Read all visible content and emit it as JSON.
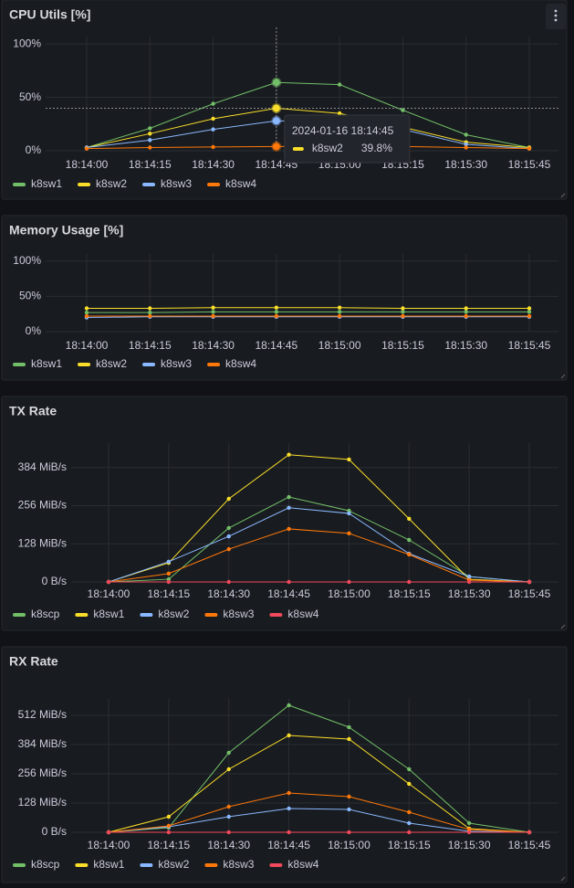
{
  "chart_data": [
    {
      "type": "line",
      "title": "CPU Utils [%]",
      "x": [
        "18:14:00",
        "18:14:15",
        "18:14:30",
        "18:14:45",
        "18:15:00",
        "18:15:15",
        "18:15:30",
        "18:15:45"
      ],
      "ylim": [
        0,
        107
      ],
      "yticks": [
        {
          "value": 0,
          "label": "0%"
        },
        {
          "value": 50,
          "label": "50%"
        },
        {
          "value": 100,
          "label": "100%"
        }
      ],
      "grid": true,
      "series": [
        {
          "name": "k8sw1",
          "color": "#73bf69",
          "values": [
            3,
            21,
            44,
            64,
            62,
            38,
            15,
            3
          ]
        },
        {
          "name": "k8sw2",
          "color": "#fade2a",
          "values": [
            3,
            16,
            30,
            39.8,
            35,
            22,
            8,
            3
          ]
        },
        {
          "name": "k8sw3",
          "color": "#8ab8ff",
          "values": [
            3,
            10,
            20,
            28,
            27,
            20,
            6,
            2
          ]
        },
        {
          "name": "k8sw4",
          "color": "#ff780a",
          "values": [
            2,
            3,
            3.5,
            4,
            4,
            4,
            3,
            2
          ]
        }
      ],
      "tooltip": {
        "time": "2024-01-16 18:14:45",
        "series_name": "k8sw2",
        "value": 39.8,
        "value_label": "39.8%"
      }
    },
    {
      "type": "line",
      "title": "Memory Usage [%]",
      "x": [
        "18:14:00",
        "18:14:15",
        "18:14:30",
        "18:14:45",
        "18:15:00",
        "18:15:15",
        "18:15:30",
        "18:15:45"
      ],
      "ylim": [
        0,
        110
      ],
      "yticks": [
        {
          "value": 0,
          "label": "0%"
        },
        {
          "value": 50,
          "label": "50%"
        },
        {
          "value": 100,
          "label": "100%"
        }
      ],
      "grid": true,
      "series": [
        {
          "name": "k8sw1",
          "color": "#73bf69",
          "values": [
            27,
            27,
            28,
            28,
            28,
            28,
            28,
            28
          ]
        },
        {
          "name": "k8sw2",
          "color": "#fade2a",
          "values": [
            33,
            33,
            34,
            34,
            34,
            33,
            33,
            33
          ]
        },
        {
          "name": "k8sw3",
          "color": "#8ab8ff",
          "values": [
            20,
            21,
            21,
            21,
            21,
            21,
            21,
            21
          ]
        },
        {
          "name": "k8sw4",
          "color": "#ff780a",
          "values": [
            22,
            22,
            22,
            22,
            22,
            22,
            22,
            22
          ]
        }
      ]
    },
    {
      "type": "line",
      "title": "TX Rate",
      "x": [
        "18:14:00",
        "18:14:15",
        "18:14:30",
        "18:14:45",
        "18:15:00",
        "18:15:15",
        "18:15:30",
        "18:15:45"
      ],
      "ylim": [
        0,
        466
      ],
      "yticks": [
        {
          "value": 0,
          "label": "0 B/s"
        },
        {
          "value": 128,
          "label": "128 MiB/s"
        },
        {
          "value": 256,
          "label": "256 MiB/s"
        },
        {
          "value": 384,
          "label": "384 MiB/s"
        }
      ],
      "grid": true,
      "series": [
        {
          "name": "k8scp",
          "color": "#73bf69",
          "values": [
            0,
            9,
            181,
            285,
            239,
            141,
            18,
            0
          ]
        },
        {
          "name": "k8sw1",
          "color": "#fade2a",
          "values": [
            0,
            64,
            279,
            427,
            411,
            212,
            9,
            0
          ]
        },
        {
          "name": "k8sw2",
          "color": "#8ab8ff",
          "values": [
            0,
            68,
            153,
            249,
            230,
            95,
            18,
            0
          ]
        },
        {
          "name": "k8sw3",
          "color": "#ff780a",
          "values": [
            0,
            28,
            110,
            178,
            163,
            92,
            6,
            0
          ]
        },
        {
          "name": "k8sw4",
          "color": "#f2495c",
          "values": [
            0,
            0,
            0,
            0,
            0,
            0,
            0,
            0
          ]
        }
      ]
    },
    {
      "type": "line",
      "title": "RX Rate",
      "x": [
        "18:14:00",
        "18:14:15",
        "18:14:30",
        "18:14:45",
        "18:15:00",
        "18:15:15",
        "18:15:30",
        "18:15:45"
      ],
      "ylim": [
        0,
        584
      ],
      "yticks": [
        {
          "value": 0,
          "label": "0 B/s"
        },
        {
          "value": 128,
          "label": "128 MiB/s"
        },
        {
          "value": 256,
          "label": "256 MiB/s"
        },
        {
          "value": 384,
          "label": "384 MiB/s"
        },
        {
          "value": 512,
          "label": "512 MiB/s"
        }
      ],
      "grid": true,
      "series": [
        {
          "name": "k8scp",
          "color": "#73bf69",
          "values": [
            0,
            20,
            348,
            556,
            460,
            276,
            40,
            0
          ]
        },
        {
          "name": "k8sw1",
          "color": "#fade2a",
          "values": [
            0,
            68,
            276,
            424,
            408,
            212,
            16,
            0
          ]
        },
        {
          "name": "k8sw2",
          "color": "#8ab8ff",
          "values": [
            0,
            24,
            68,
            104,
            100,
            40,
            4,
            0
          ]
        },
        {
          "name": "k8sw3",
          "color": "#ff780a",
          "values": [
            0,
            28,
            112,
            172,
            156,
            88,
            12,
            0
          ]
        },
        {
          "name": "k8sw4",
          "color": "#f2495c",
          "values": [
            0,
            0,
            0,
            0,
            0,
            0,
            0,
            0
          ]
        }
      ]
    }
  ]
}
